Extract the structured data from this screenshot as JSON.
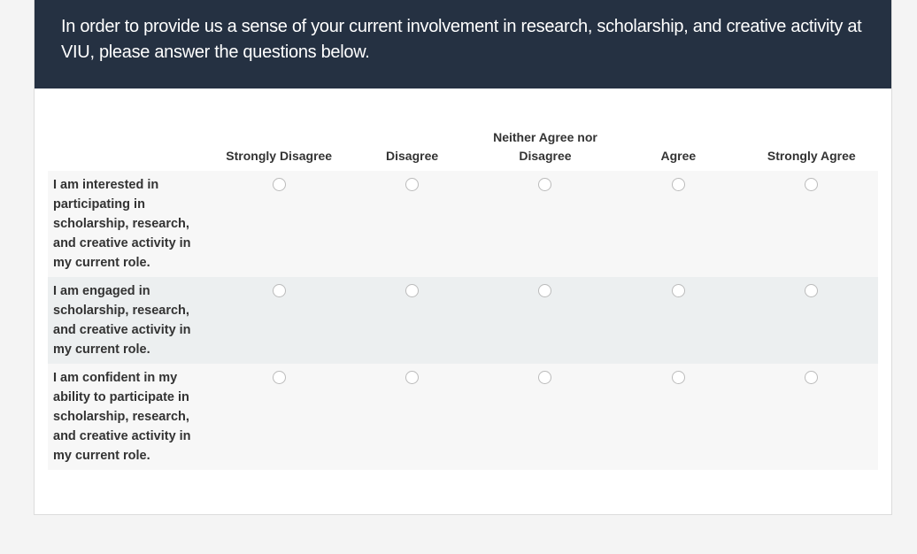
{
  "intro": "In order to provide us a sense of your current involvement in research, scholarship, and creative activity at VIU, please answer the questions below.",
  "columns": [
    "Strongly Disagree",
    "Disagree",
    "Neither Agree nor Disagree",
    "Agree",
    "Strongly Agree"
  ],
  "questions": [
    {
      "label": "I am interested in participating in scholarship, research, and creative activity in my current role.",
      "selected": null
    },
    {
      "label": "I am engaged in scholarship, research, and creative activity in my current role.",
      "selected": null
    },
    {
      "label": "I am confident in my ability to participate in scholarship, research, and creative activity in my current role.",
      "selected": null
    }
  ]
}
